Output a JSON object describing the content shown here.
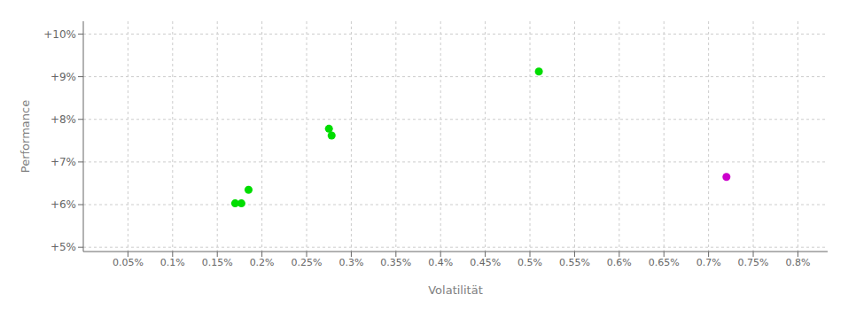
{
  "chart_data": {
    "type": "scatter",
    "xlabel": "Volatilität",
    "ylabel": "Performance",
    "xlim": [
      0.0,
      0.008333
    ],
    "ylim": [
      0.049,
      0.103
    ],
    "xticks": [
      {
        "value": 0.0005,
        "label": "0.05%"
      },
      {
        "value": 0.001,
        "label": "0.1%"
      },
      {
        "value": 0.0015,
        "label": "0.15%"
      },
      {
        "value": 0.002,
        "label": "0.2%"
      },
      {
        "value": 0.0025,
        "label": "0.25%"
      },
      {
        "value": 0.003,
        "label": "0.3%"
      },
      {
        "value": 0.0035,
        "label": "0.35%"
      },
      {
        "value": 0.004,
        "label": "0.4%"
      },
      {
        "value": 0.0045,
        "label": "0.45%"
      },
      {
        "value": 0.005,
        "label": "0.5%"
      },
      {
        "value": 0.0055,
        "label": "0.55%"
      },
      {
        "value": 0.006,
        "label": "0.6%"
      },
      {
        "value": 0.0065,
        "label": "0.65%"
      },
      {
        "value": 0.007,
        "label": "0.7%"
      },
      {
        "value": 0.0075,
        "label": "0.75%"
      },
      {
        "value": 0.008,
        "label": "0.8%"
      }
    ],
    "yticks": [
      {
        "value": 0.05,
        "label": "+5%"
      },
      {
        "value": 0.06,
        "label": "+6%"
      },
      {
        "value": 0.07,
        "label": "+7%"
      },
      {
        "value": 0.08,
        "label": "+8%"
      },
      {
        "value": 0.09,
        "label": "+9%"
      },
      {
        "value": 0.1,
        "label": "+10%"
      }
    ],
    "grid": true,
    "series": [
      {
        "color": "#00dd00",
        "x": [
          0.00275,
          0.00278,
          0.00185,
          0.0017,
          0.00177,
          0.0051
        ],
        "values": [
          0.0778,
          0.0762,
          0.0635,
          0.0603,
          0.0603,
          0.0912
        ]
      },
      {
        "color": "#cc00cc",
        "x": [
          0.0072
        ],
        "values": [
          0.0665
        ]
      }
    ]
  }
}
